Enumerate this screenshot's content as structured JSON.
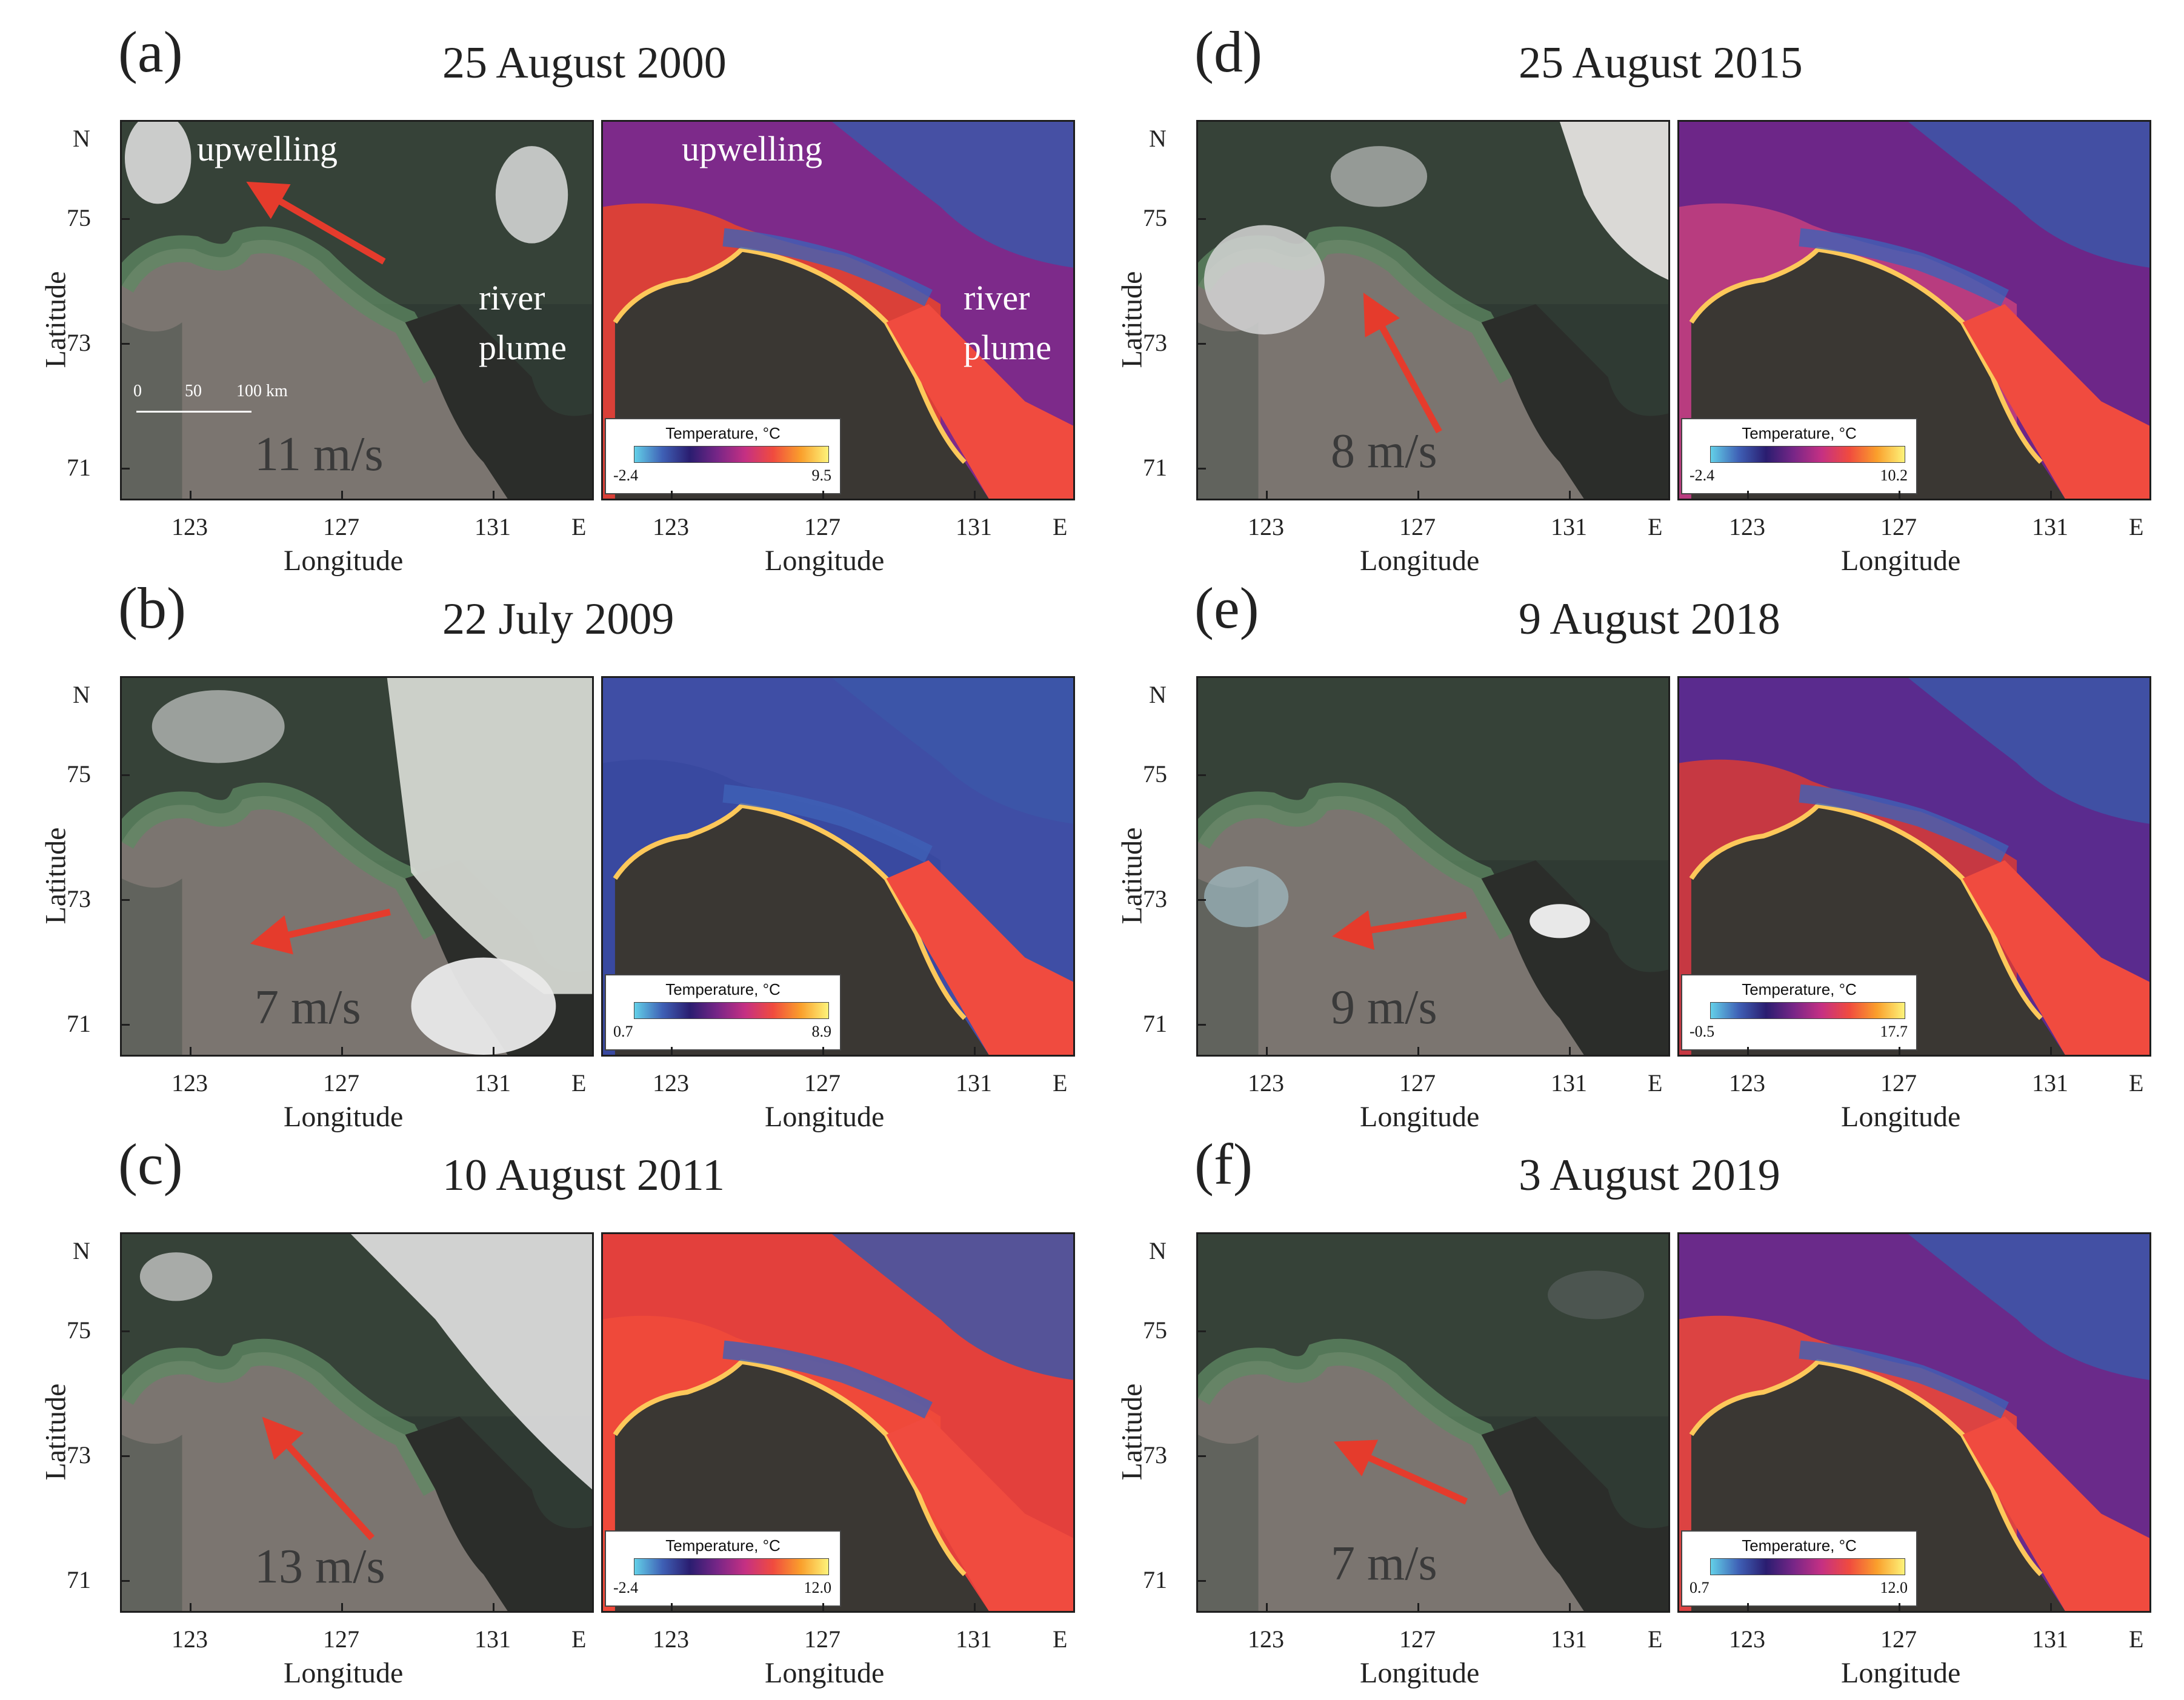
{
  "figure": {
    "panels": [
      {
        "id": "a",
        "label": "(a)",
        "date": "25 August 2000",
        "wind": "11 m/s",
        "temp_min": "-2.4",
        "temp_max": "9.5"
      },
      {
        "id": "b",
        "label": "(b)",
        "date": "22 July 2009",
        "wind": "7 m/s",
        "temp_min": "0.7",
        "temp_max": "8.9"
      },
      {
        "id": "c",
        "label": "(c)",
        "date": "10 August 2011",
        "wind": "13 m/s",
        "temp_min": "-2.4",
        "temp_max": "12.0"
      },
      {
        "id": "d",
        "label": "(d)",
        "date": "25 August 2015",
        "wind": "8 m/s",
        "temp_min": "-2.4",
        "temp_max": "10.2"
      },
      {
        "id": "e",
        "label": "(e)",
        "date": "9 August 2018",
        "wind": "9 m/s",
        "temp_min": "-0.5",
        "temp_max": "17.7"
      },
      {
        "id": "f",
        "label": "(f)",
        "date": "3 August 2019",
        "wind": "7 m/s",
        "temp_min": "0.7",
        "temp_max": "12.0"
      }
    ],
    "axes": {
      "north": "N",
      "east": "E",
      "lat_label": "Latitude",
      "lon_label": "Longitude",
      "lat_ticks": [
        "75",
        "73",
        "71"
      ],
      "lon_ticks": [
        "123",
        "127",
        "131"
      ]
    },
    "colorbar_title": "Temperature, °C",
    "annotations": {
      "upwelling": "upwelling",
      "river": "river",
      "plume": "plume"
    },
    "scale_bar": {
      "zero": "0",
      "mid": "50",
      "end": "100 km"
    },
    "colors": {
      "land": "#3a3733",
      "sea_gray": "#7b7570",
      "arrow": "#e53b2c",
      "cold": "#3f61b6",
      "warm": "#f04b3f"
    }
  }
}
